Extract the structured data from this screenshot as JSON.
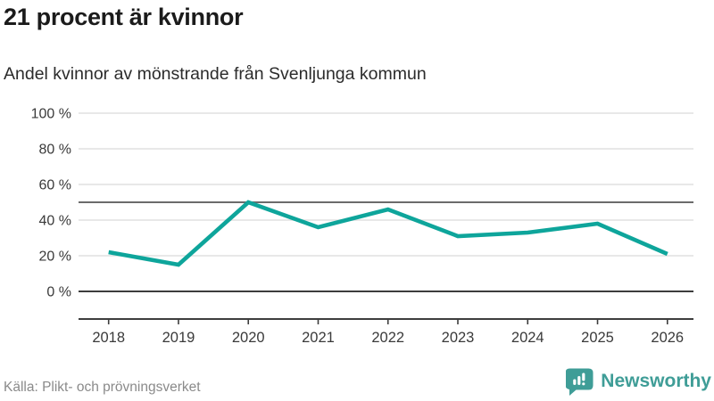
{
  "header": {
    "title": "21 procent är kvinnor",
    "subtitle": "Andel kvinnor av mönstrande från Svenljunga kommun"
  },
  "chart_data": {
    "type": "line",
    "title": "21 procent är kvinnor",
    "subtitle": "Andel kvinnor av mönstrande från Svenljunga kommun",
    "x": [
      2018,
      2019,
      2020,
      2021,
      2022,
      2023,
      2024,
      2025,
      2026
    ],
    "series": [
      {
        "name": "Andel kvinnor av mönstrande",
        "values": [
          22,
          15,
          50,
          36,
          46,
          31,
          33,
          38,
          21
        ]
      }
    ],
    "unit": "%",
    "ylim": [
      0,
      100
    ],
    "y_ticks": [
      0,
      20,
      40,
      60,
      80,
      100
    ],
    "y_tick_suffix": " %",
    "reference_line": 50,
    "grid": true,
    "legend": "none",
    "line_color": "#0ea59b"
  },
  "footer": {
    "source": "Källa: Plikt- och prövningsverket",
    "brand": {
      "name": "Newsworthy",
      "icon": "bar-chart-speech-bubble-icon"
    }
  },
  "colors": {
    "line": "#0ea59b",
    "brand_teal": "#3f9d97",
    "grid": "#e0e0e0",
    "reference_line": "#6b6b6b",
    "axis": "#3d3d3d",
    "axis_label": "#3a3a3a",
    "source_text": "#8a8a8a"
  }
}
